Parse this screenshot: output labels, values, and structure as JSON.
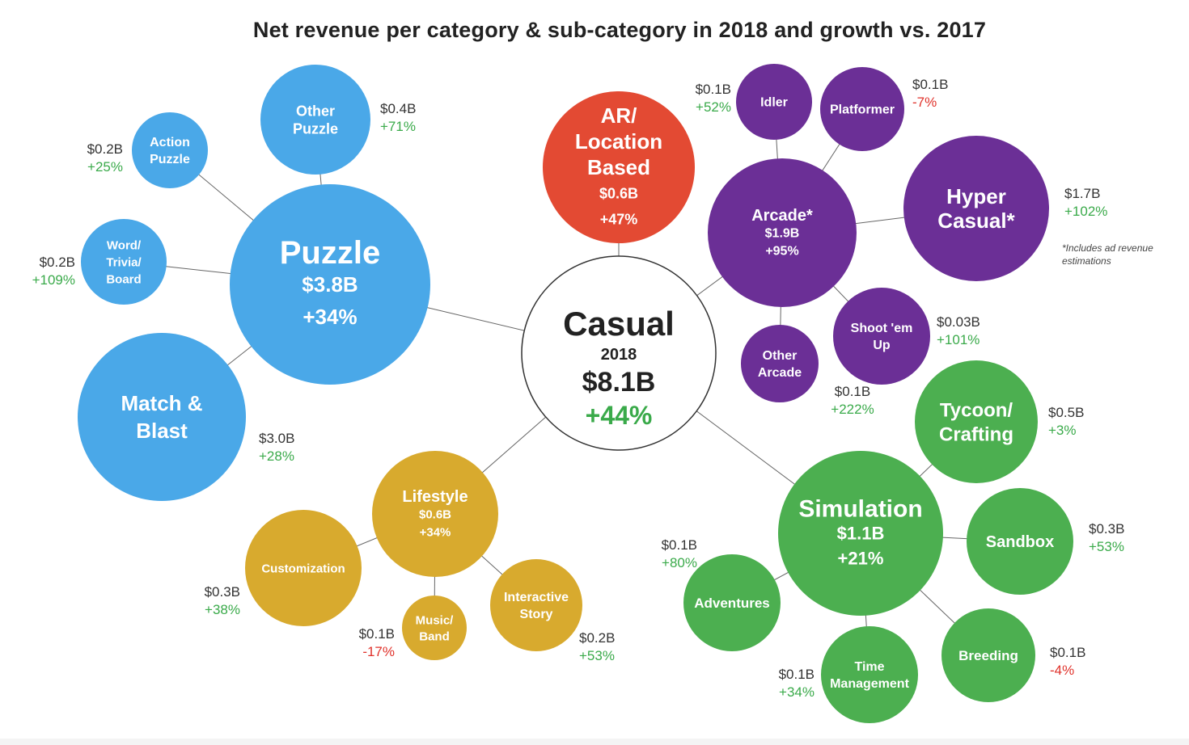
{
  "title": "Net revenue per category & sub-category in 2018 and growth vs. 2017",
  "footnote": "*Includes ad revenue estimations",
  "colors": {
    "puzzle": "#4aa8e8",
    "ar": "#e34a33",
    "arcade": "#6b2f96",
    "simulation": "#4caf50",
    "lifestyle": "#d8aa2e",
    "center_stroke": "#333333",
    "positive": "#3aaa4a",
    "negative": "#e0322b",
    "value_text": "#333333",
    "edge": "#666666"
  },
  "center": {
    "name": "Casual",
    "year": "2018",
    "value": "$8.1B",
    "growth": "+44%"
  },
  "nodes": [
    {
      "id": "puzzle",
      "lines": [
        "Puzzle",
        "$3.8B",
        "+34%"
      ],
      "color": "puzzle",
      "parent": "center"
    },
    {
      "id": "ar",
      "lines": [
        "AR/",
        "Location",
        "Based",
        "$0.6B",
        "+47%"
      ],
      "color": "ar",
      "parent": "center"
    },
    {
      "id": "arcade",
      "lines": [
        "Arcade*",
        "$1.9B",
        "+95%"
      ],
      "color": "arcade",
      "parent": "center"
    },
    {
      "id": "simulation",
      "lines": [
        "Simulation",
        "$1.1B",
        "+21%"
      ],
      "color": "simulation",
      "parent": "center"
    },
    {
      "id": "lifestyle",
      "lines": [
        "Lifestyle",
        "$0.6B",
        "+34%"
      ],
      "color": "lifestyle",
      "parent": "center"
    },
    {
      "id": "other-puzzle",
      "lines": [
        "Other",
        "Puzzle"
      ],
      "color": "puzzle",
      "parent": "puzzle",
      "value": "$0.4B",
      "growth": "+71%"
    },
    {
      "id": "action-puzzle",
      "lines": [
        "Action",
        "Puzzle"
      ],
      "color": "puzzle",
      "parent": "puzzle",
      "value": "$0.2B",
      "growth": "+25%"
    },
    {
      "id": "word-trivia-board",
      "lines": [
        "Word/",
        "Trivia/",
        "Board"
      ],
      "color": "puzzle",
      "parent": "puzzle",
      "value": "$0.2B",
      "growth": "+109%"
    },
    {
      "id": "match-blast",
      "lines": [
        "Match &",
        "Blast"
      ],
      "color": "puzzle",
      "parent": "puzzle",
      "value": "$3.0B",
      "growth": "+28%"
    },
    {
      "id": "idler",
      "lines": [
        "Idler"
      ],
      "color": "arcade",
      "parent": "arcade",
      "value": "$0.1B",
      "growth": "+52%"
    },
    {
      "id": "platformer",
      "lines": [
        "Platformer"
      ],
      "color": "arcade",
      "parent": "arcade",
      "value": "$0.1B",
      "growth": "-7%"
    },
    {
      "id": "hyper-casual",
      "lines": [
        "Hyper",
        "Casual*"
      ],
      "color": "arcade",
      "parent": "arcade",
      "value": "$1.7B",
      "growth": "+102%"
    },
    {
      "id": "shoot-em-up",
      "lines": [
        "Shoot 'em",
        "Up"
      ],
      "color": "arcade",
      "parent": "arcade",
      "value": "$0.03B",
      "growth": "+101%"
    },
    {
      "id": "other-arcade",
      "lines": [
        "Other",
        "Arcade"
      ],
      "color": "arcade",
      "parent": "arcade",
      "value": "$0.1B",
      "growth": "+222%"
    },
    {
      "id": "tycoon-crafting",
      "lines": [
        "Tycoon/",
        "Crafting"
      ],
      "color": "simulation",
      "parent": "simulation",
      "value": "$0.5B",
      "growth": "+3%"
    },
    {
      "id": "sandbox",
      "lines": [
        "Sandbox"
      ],
      "color": "simulation",
      "parent": "simulation",
      "value": "$0.3B",
      "growth": "+53%"
    },
    {
      "id": "breeding",
      "lines": [
        "Breeding"
      ],
      "color": "simulation",
      "parent": "simulation",
      "value": "$0.1B",
      "growth": "-4%"
    },
    {
      "id": "time-management",
      "lines": [
        "Time",
        "Management"
      ],
      "color": "simulation",
      "parent": "simulation",
      "value": "$0.1B",
      "growth": "+34%"
    },
    {
      "id": "adventures",
      "lines": [
        "Adventures"
      ],
      "color": "simulation",
      "parent": "simulation",
      "value": "$0.1B",
      "growth": "+80%"
    },
    {
      "id": "customization",
      "lines": [
        "Customization"
      ],
      "color": "lifestyle",
      "parent": "lifestyle",
      "value": "$0.3B",
      "growth": "+38%"
    },
    {
      "id": "music-band",
      "lines": [
        "Music/",
        "Band"
      ],
      "color": "lifestyle",
      "parent": "lifestyle",
      "value": "$0.1B",
      "growth": "-17%"
    },
    {
      "id": "interactive-story",
      "lines": [
        "Interactive",
        "Story"
      ],
      "color": "lifestyle",
      "parent": "lifestyle",
      "value": "$0.2B",
      "growth": "+53%"
    }
  ]
}
